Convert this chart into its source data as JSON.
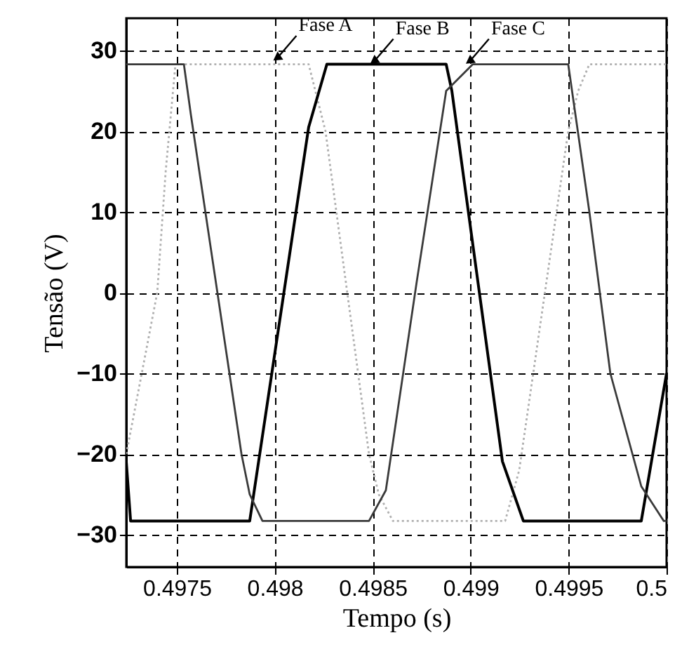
{
  "chart_data": {
    "type": "line",
    "xlabel": "Tempo (s)",
    "ylabel": "Tensão (V)",
    "xlim": [
      0.497242,
      0.5
    ],
    "xticks": [
      0.4975,
      0.498,
      0.4985,
      0.499,
      0.4995,
      0.5
    ],
    "ylim": [
      -34,
      34
    ],
    "yticks": [
      -30,
      -20,
      -10,
      0,
      10,
      20,
      30
    ],
    "grid": true,
    "series": [
      {
        "color": "#b0b0b0",
        "line_style": "dotted",
        "x": [
          0.497242,
          0.4974,
          0.497443,
          0.497493,
          0.498173,
          0.498259,
          0.498481,
          0.498531,
          0.498603,
          0.499176,
          0.499248,
          0.499498,
          0.499549,
          0.499606,
          0.5
        ],
        "values": [
          -20,
          0,
          15,
          28.3,
          28.3,
          20,
          -20,
          -25,
          -28.3,
          -28.3,
          -22,
          20,
          25,
          28.3,
          28.3
        ]
      },
      {
        "color": "#000000",
        "line_style": "solid",
        "x": [
          0.497242,
          0.497264,
          0.497872,
          0.498173,
          0.498266,
          0.498875,
          0.498904,
          0.499162,
          0.499269,
          0.499871,
          0.5
        ],
        "values": [
          -21,
          -28.3,
          -28.3,
          20.5,
          28.3,
          28.3,
          25,
          -20.9,
          -28.3,
          -28.3,
          -10
        ]
      },
      {
        "color": "#3a3a3a",
        "line_style": "solid",
        "x": [
          0.497242,
          0.497536,
          0.497572,
          0.497615,
          0.49783,
          0.497872,
          0.497937,
          0.498481,
          0.498567,
          0.498725,
          0.498875,
          0.499011,
          0.499498,
          0.499606,
          0.499713,
          0.499871,
          0.499986,
          0.5
        ],
        "values": [
          28.3,
          28.3,
          22,
          15,
          -20,
          -25,
          -28.3,
          -28.3,
          -24.5,
          1.4,
          25,
          28.3,
          28.3,
          10,
          -10,
          -24,
          -28.3,
          -28.3
        ]
      }
    ],
    "annotations": [
      {
        "text": "Fase A",
        "x": 0.498,
        "y": 28.7
      },
      {
        "text": "Fase B",
        "x": 0.498495,
        "y": 28.3
      },
      {
        "text": "Fase C",
        "x": 0.498983,
        "y": 28.3
      }
    ]
  }
}
